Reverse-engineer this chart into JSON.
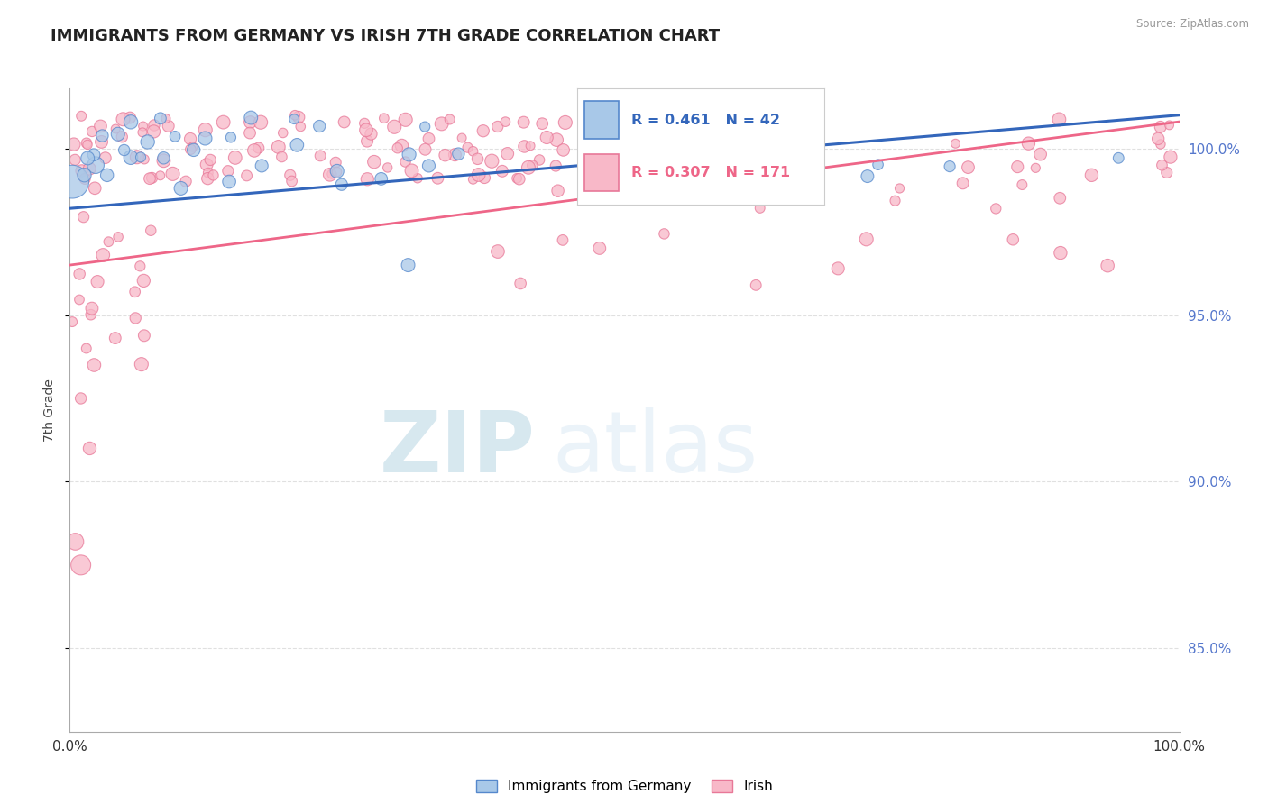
{
  "title": "IMMIGRANTS FROM GERMANY VS IRISH 7TH GRADE CORRELATION CHART",
  "source_text": "Source: ZipAtlas.com",
  "ylabel": "7th Grade",
  "x_min": 0.0,
  "x_max": 100.0,
  "y_min": 82.5,
  "y_max": 101.8,
  "blue_R": 0.461,
  "blue_N": 42,
  "pink_R": 0.307,
  "pink_N": 171,
  "blue_fill_color": "#A8C8E8",
  "blue_edge_color": "#5588CC",
  "pink_fill_color": "#F8B8C8",
  "pink_edge_color": "#E87898",
  "blue_line_color": "#3366BB",
  "pink_line_color": "#EE6688",
  "watermark_zip": "ZIP",
  "watermark_atlas": "atlas",
  "watermark_color": "#BBDDEE",
  "background_color": "#FFFFFF",
  "grid_color": "#CCCCCC",
  "title_color": "#222222",
  "right_axis_color": "#5577CC",
  "legend_blue_label": "Immigrants from Germany",
  "legend_pink_label": "Irish",
  "title_fontsize": 13,
  "right_yticks": [
    85.0,
    90.0,
    95.0,
    100.0
  ],
  "blue_trend_start_y": 98.2,
  "blue_trend_end_y": 101.0,
  "pink_trend_start_y": 96.5,
  "pink_trend_end_y": 100.8
}
